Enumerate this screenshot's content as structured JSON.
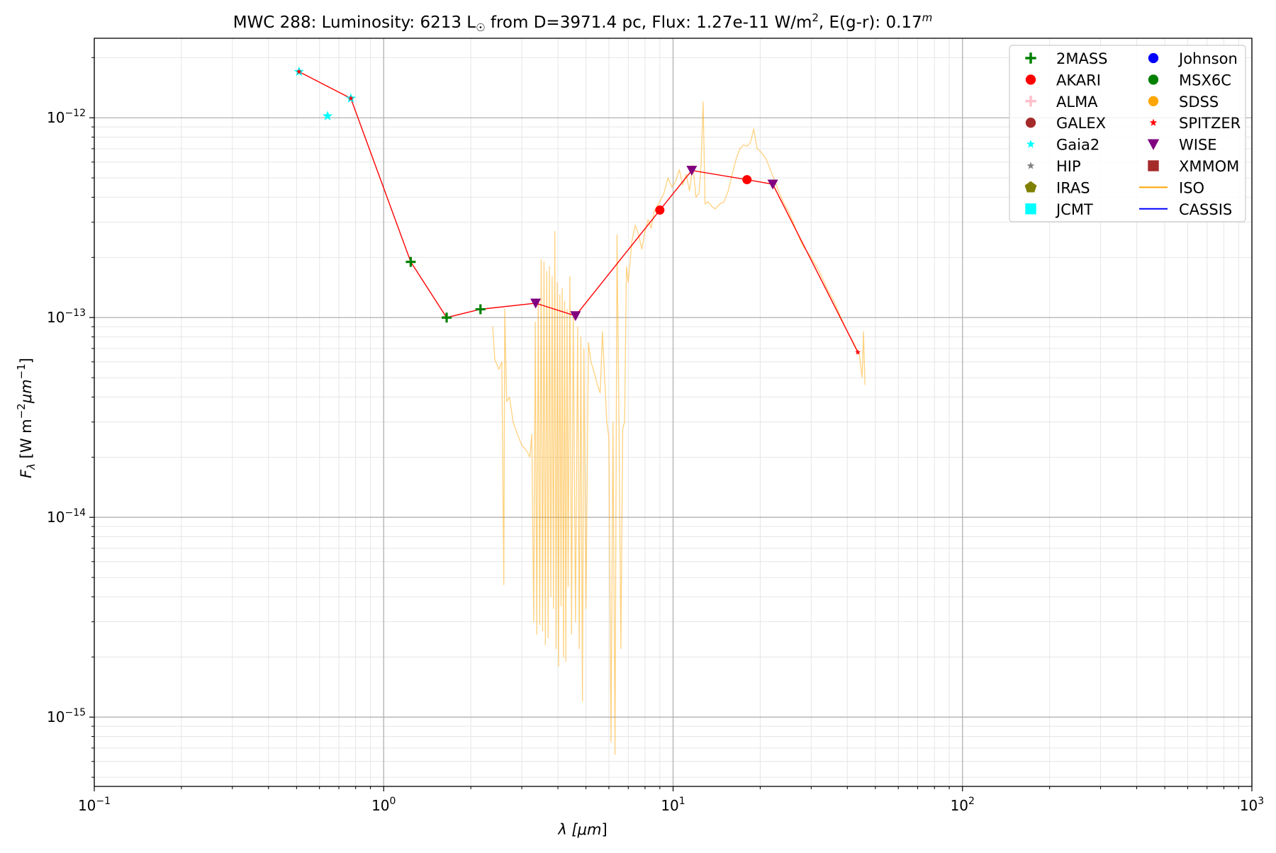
{
  "chart_data": {
    "type": "scatter",
    "title": {
      "prefix": "MWC 288:  Luminosity: 6213 L",
      "sun_symbol": "☉",
      "mid": " from D=3971.4 pc, Flux: 1.27e-11 W/m",
      "mid_sup": "2",
      "tail": ", E(g-r): 0.17",
      "tail_sup": "m"
    },
    "xlabel": {
      "main": "λ [",
      "unit": "μm",
      "close": "]"
    },
    "ylabel": {
      "main": "F",
      "sub": "λ",
      "after_sub": " [W m",
      "sup1": "−2",
      "unit": "μm",
      "sup2": "−1",
      "close": "]"
    },
    "x_scale": "log",
    "y_scale": "log",
    "xlim": [
      0.1,
      1000
    ],
    "ylim": [
      4.5e-16,
      2.5e-12
    ],
    "grid": true,
    "x_ticks": [
      {
        "value": 0.1,
        "base": "10",
        "exp": "−1"
      },
      {
        "value": 1,
        "base": "10",
        "exp": "0"
      },
      {
        "value": 10,
        "base": "10",
        "exp": "1"
      },
      {
        "value": 100,
        "base": "10",
        "exp": "2"
      },
      {
        "value": 1000,
        "base": "10",
        "exp": "3"
      }
    ],
    "y_ticks": [
      {
        "value": 1e-15,
        "base": "10",
        "exp": "−15"
      },
      {
        "value": 1e-14,
        "base": "10",
        "exp": "−14"
      },
      {
        "value": 1e-13,
        "base": "10",
        "exp": "−13"
      },
      {
        "value": 1e-12,
        "base": "10",
        "exp": "−12"
      }
    ],
    "sed_line": {
      "color": "#ff0000",
      "points": [
        [
          0.51,
          1.7e-12
        ],
        [
          0.77,
          1.25e-12
        ],
        [
          1.24,
          1.9e-13
        ],
        [
          1.65,
          1e-13
        ],
        [
          2.16,
          1.1e-13
        ],
        [
          3.35,
          1.18e-13
        ],
        [
          4.6,
          1.02e-13
        ],
        [
          9.0,
          3.45e-13
        ],
        [
          11.6,
          5.45e-13
        ],
        [
          18.0,
          4.9e-13
        ],
        [
          22.1,
          4.65e-13
        ],
        [
          43.5,
          6.7e-14
        ]
      ]
    },
    "series": [
      {
        "name": "2MASS",
        "marker": "plus",
        "color": "#008000",
        "points": [
          [
            1.24,
            1.9e-13
          ],
          [
            1.65,
            1e-13
          ],
          [
            2.16,
            1.1e-13
          ]
        ]
      },
      {
        "name": "AKARI",
        "marker": "circle",
        "color": "#ff0000",
        "points": [
          [
            9.0,
            3.45e-13
          ],
          [
            18.0,
            4.9e-13
          ]
        ]
      },
      {
        "name": "ALMA",
        "marker": "plus",
        "color": "#ffc0cb",
        "points": []
      },
      {
        "name": "GALEX",
        "marker": "circle",
        "color": "#a52a2a",
        "points": []
      },
      {
        "name": "Gaia2",
        "marker": "star",
        "color": "#00ffff",
        "points": [
          [
            0.51,
            1.7e-12
          ],
          [
            0.64,
            1.02e-12
          ],
          [
            0.77,
            1.25e-12
          ]
        ]
      },
      {
        "name": "HIP",
        "marker": "star",
        "color": "#808080",
        "points": []
      },
      {
        "name": "IRAS",
        "marker": "pentagon",
        "color": "#808000",
        "points": []
      },
      {
        "name": "JCMT",
        "marker": "square",
        "color": "#00ffff",
        "points": []
      },
      {
        "name": "Johnson",
        "marker": "circle",
        "color": "#0000ff",
        "points": []
      },
      {
        "name": "MSX6C",
        "marker": "circle",
        "color": "#008000",
        "points": []
      },
      {
        "name": "SDSS",
        "marker": "circle",
        "color": "#ffa500",
        "points": []
      },
      {
        "name": "SPITZER",
        "marker": "star",
        "color": "#ff0000",
        "points": [
          [
            0.51,
            1.7e-12
          ],
          [
            0.77,
            1.25e-12
          ],
          [
            43.5,
            6.7e-14
          ]
        ]
      },
      {
        "name": "WISE",
        "marker": "triangle_down",
        "color": "#800080",
        "points": [
          [
            3.35,
            1.18e-13
          ],
          [
            4.6,
            1.02e-13
          ],
          [
            11.6,
            5.45e-13
          ],
          [
            22.1,
            4.65e-13
          ]
        ]
      },
      {
        "name": "XMMOM",
        "marker": "square",
        "color": "#a52a2a",
        "points": []
      },
      {
        "name": "ISO",
        "marker": "line",
        "color": "#ffa500",
        "points": []
      },
      {
        "name": "CASSIS",
        "marker": "line",
        "color": "#0000ff",
        "points": []
      }
    ],
    "iso_spectrum": {
      "color": "#ffa500",
      "opacity": 0.5,
      "points": [
        [
          2.38,
          9e-14
        ],
        [
          2.42,
          6.2e-14
        ],
        [
          2.5,
          5.5e-14
        ],
        [
          2.56,
          6e-14
        ],
        [
          2.6,
          4.6e-15
        ],
        [
          2.62,
          1.1e-13
        ],
        [
          2.66,
          3.8e-14
        ],
        [
          2.72,
          4e-14
        ],
        [
          2.8,
          3e-14
        ],
        [
          2.9,
          2.6e-14
        ],
        [
          3.0,
          2.3e-14
        ],
        [
          3.08,
          2.2e-14
        ],
        [
          3.15,
          2.1e-14
        ],
        [
          3.2,
          2e-14
        ],
        [
          3.25,
          2.6e-14
        ],
        [
          3.3,
          3e-15
        ],
        [
          3.34,
          9.5e-14
        ],
        [
          3.38,
          2.6e-15
        ],
        [
          3.42,
          1.2e-13
        ],
        [
          3.46,
          2.9e-15
        ],
        [
          3.5,
          1.95e-13
        ],
        [
          3.54,
          2.7e-15
        ],
        [
          3.58,
          1.9e-13
        ],
        [
          3.62,
          2.3e-15
        ],
        [
          3.66,
          1.7e-13
        ],
        [
          3.7,
          2.5e-15
        ],
        [
          3.74,
          1.8e-13
        ],
        [
          3.78,
          4e-15
        ],
        [
          3.82,
          1.6e-13
        ],
        [
          3.86,
          3.5e-15
        ],
        [
          3.9,
          2.7e-13
        ],
        [
          3.94,
          2.2e-15
        ],
        [
          3.98,
          1.5e-13
        ],
        [
          4.02,
          1.8e-15
        ],
        [
          4.06,
          1.3e-13
        ],
        [
          4.1,
          3.6e-15
        ],
        [
          4.14,
          1.4e-13
        ],
        [
          4.18,
          2e-15
        ],
        [
          4.22,
          1.2e-13
        ],
        [
          4.26,
          1.9e-15
        ],
        [
          4.3,
          1.1e-13
        ],
        [
          4.34,
          4.5e-15
        ],
        [
          4.4,
          1.6e-13
        ],
        [
          4.46,
          2.6e-15
        ],
        [
          4.52,
          1.05e-13
        ],
        [
          4.6,
          3e-15
        ],
        [
          4.68,
          9e-14
        ],
        [
          4.74,
          2.2e-15
        ],
        [
          4.8,
          8e-14
        ],
        [
          4.86,
          1.2e-15
        ],
        [
          4.92,
          7e-14
        ],
        [
          5.0,
          3.5e-15
        ],
        [
          5.1,
          7.5e-14
        ],
        [
          5.2,
          6e-14
        ],
        [
          5.3,
          5.5e-14
        ],
        [
          5.4,
          5e-14
        ],
        [
          5.5,
          4.5e-14
        ],
        [
          5.6,
          4.2e-14
        ],
        [
          5.7,
          8.5e-14
        ],
        [
          5.8,
          5e-14
        ],
        [
          5.9,
          3e-14
        ],
        [
          6.0,
          2.5e-14
        ],
        [
          6.1,
          7.5e-16
        ],
        [
          6.2,
          3e-14
        ],
        [
          6.3,
          6.5e-16
        ],
        [
          6.4,
          2.6e-13
        ],
        [
          6.5,
          3.2e-14
        ],
        [
          6.6,
          2.2e-15
        ],
        [
          6.7,
          2.8e-14
        ],
        [
          6.8,
          3e-14
        ],
        [
          6.9,
          1.8e-13
        ],
        [
          7.0,
          1.5e-13
        ],
        [
          7.2,
          2.4e-13
        ],
        [
          7.4,
          2.9e-13
        ],
        [
          7.6,
          2.6e-13
        ],
        [
          7.8,
          2.2e-13
        ],
        [
          8.0,
          2.7e-13
        ],
        [
          8.2,
          3.1e-13
        ],
        [
          8.4,
          2.8e-13
        ],
        [
          8.6,
          3.4e-13
        ],
        [
          8.8,
          3.6e-13
        ],
        [
          9.0,
          3.8e-13
        ],
        [
          9.3,
          4.2e-13
        ],
        [
          9.6,
          5e-13
        ],
        [
          9.9,
          4.5e-13
        ],
        [
          10.2,
          4.8e-13
        ],
        [
          10.5,
          5.5e-13
        ],
        [
          10.8,
          4.6e-13
        ],
        [
          11.1,
          5.2e-13
        ],
        [
          11.4,
          4.3e-13
        ],
        [
          11.7,
          5.8e-13
        ],
        [
          12.0,
          4e-13
        ],
        [
          12.3,
          4.2e-13
        ],
        [
          12.5,
          6e-13
        ],
        [
          12.7,
          1.2e-12
        ],
        [
          12.9,
          3.7e-13
        ],
        [
          13.2,
          3.8e-13
        ],
        [
          13.6,
          3.6e-13
        ],
        [
          14.0,
          3.5e-13
        ],
        [
          14.5,
          3.7e-13
        ],
        [
          15.0,
          3.8e-13
        ],
        [
          15.5,
          4.3e-13
        ],
        [
          16.0,
          5.2e-13
        ],
        [
          16.5,
          6.2e-13
        ],
        [
          17.0,
          7e-13
        ],
        [
          17.5,
          7.3e-13
        ],
        [
          18.0,
          7.2e-13
        ],
        [
          18.5,
          7.5e-13
        ],
        [
          19.0,
          8.8e-13
        ],
        [
          19.5,
          7e-13
        ],
        [
          20.0,
          6.8e-13
        ],
        [
          21.0,
          6.2e-13
        ],
        [
          22.0,
          5.2e-13
        ],
        [
          23.0,
          4.4e-13
        ],
        [
          24.0,
          3.8e-13
        ],
        [
          25.0,
          3.4e-13
        ],
        [
          26.0,
          3e-13
        ],
        [
          27.0,
          2.6e-13
        ],
        [
          28.0,
          2.3e-13
        ],
        [
          30.0,
          2e-13
        ],
        [
          32.0,
          1.7e-13
        ],
        [
          34.0,
          1.4e-13
        ],
        [
          36.0,
          1.2e-13
        ],
        [
          38.0,
          1e-13
        ],
        [
          40.0,
          8.5e-14
        ],
        [
          42.0,
          7.5e-14
        ],
        [
          44.0,
          6.5e-14
        ],
        [
          45.0,
          5e-14
        ],
        [
          45.5,
          8.5e-14
        ],
        [
          46.0,
          4.6e-14
        ]
      ]
    },
    "legend": {
      "position": "top-right",
      "columns": 2,
      "order": [
        "2MASS",
        "AKARI",
        "ALMA",
        "GALEX",
        "Gaia2",
        "HIP",
        "IRAS",
        "JCMT",
        "Johnson",
        "MSX6C",
        "SDSS",
        "SPITZER",
        "WISE",
        "XMMOM",
        "ISO",
        "CASSIS"
      ]
    }
  }
}
